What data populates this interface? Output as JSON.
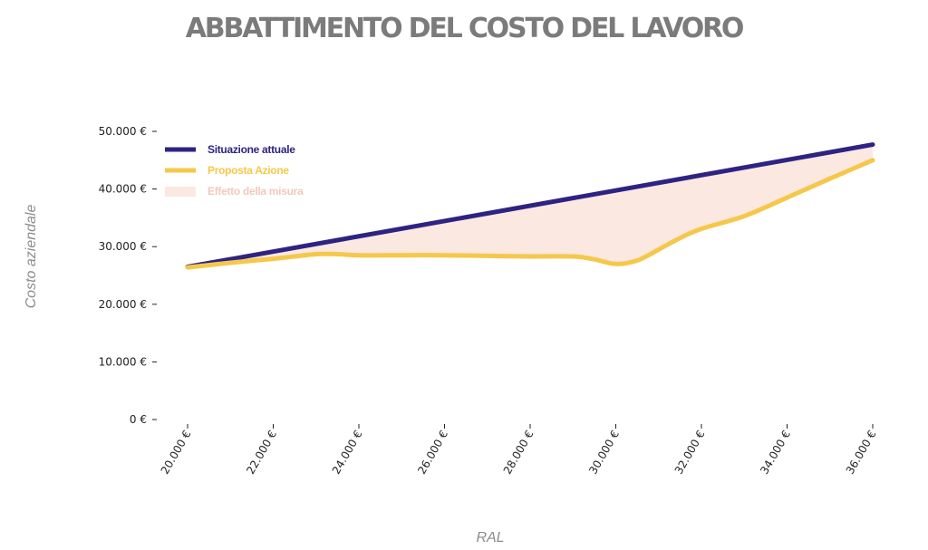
{
  "chart_data": {
    "type": "line",
    "title": "ABBATTIMENTO DEL COSTO DEL LAVORO",
    "xlabel": "RAL",
    "ylabel": "Costo aziendale",
    "xlim": [
      20000,
      36000
    ],
    "ylim": [
      0,
      50000
    ],
    "x_ticks": [
      20000,
      22000,
      24000,
      26000,
      28000,
      30000,
      32000,
      34000,
      36000
    ],
    "x_tick_labels": [
      "20.000 €",
      "22.000 €",
      "24.000 €",
      "26.000 €",
      "28.000 €",
      "30.000 €",
      "32.000 €",
      "34.000 €",
      "36.000 €"
    ],
    "y_ticks": [
      0,
      10000,
      20000,
      30000,
      40000,
      50000
    ],
    "y_tick_labels": [
      "0 €",
      "10.000 €",
      "20.000 €",
      "30.000 €",
      "40.000 €",
      "50.000 €"
    ],
    "legend_position": "top-left",
    "series": [
      {
        "name": "Situazione attuale",
        "color": "#2e2383",
        "x": [
          20000,
          36000
        ],
        "values": [
          26500,
          47700
        ]
      },
      {
        "name": "Proposta Azione",
        "color": "#f5c84b",
        "x": [
          20000,
          21000,
          22000,
          22500,
          23000,
          23500,
          24000,
          25000,
          26000,
          27000,
          28000,
          29000,
          29500,
          30000,
          30500,
          31000,
          31500,
          32000,
          33000,
          34000,
          35000,
          36000
        ],
        "values": [
          26400,
          27200,
          27900,
          28300,
          28700,
          28700,
          28500,
          28500,
          28500,
          28400,
          28300,
          28300,
          27800,
          27000,
          27600,
          29500,
          31500,
          33100,
          35300,
          38500,
          41800,
          45000
        ]
      }
    ],
    "area": {
      "name": "Effetto della misura",
      "color": "#fbe8e1",
      "between": [
        "Situazione attuale",
        "Proposta Azione"
      ]
    }
  }
}
